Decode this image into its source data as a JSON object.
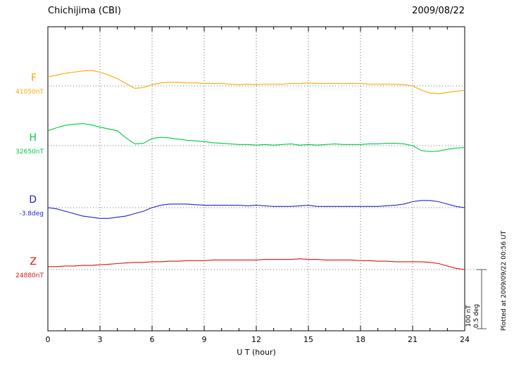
{
  "header": {
    "station": "Chichijima (CBI)",
    "date": "2009/08/22"
  },
  "xaxis": {
    "label": "U T (hour)"
  },
  "scale_bar": {
    "line1": "100 nT",
    "line2": "0.5 deg"
  },
  "footer_note": "Plotted at 2009/09/22 00:56 UT",
  "chart_data": {
    "type": "line",
    "title": "Chichijima (CBI) magnetogram 2009/08/22",
    "xlabel": "U T (hour)",
    "x_range_hours": [
      0,
      24
    ],
    "x_ticks": [
      0,
      3,
      6,
      9,
      12,
      15,
      18,
      21,
      24
    ],
    "step_hours": 0.5,
    "grid": "vertical dotted lines at 3-hour intervals; dotted horizontal baseline per trace",
    "scale": {
      "nT_per_bar": 100,
      "deg_per_bar": 0.5
    },
    "series": [
      {
        "name": "F",
        "base_label": "41050nT",
        "unit": "nT",
        "color": "#FFA500",
        "offsets": [
          15,
          18,
          21,
          23,
          25,
          26,
          23,
          18,
          12,
          4,
          -4,
          -3,
          2,
          5,
          6,
          6,
          5,
          5,
          4,
          4,
          4,
          3,
          2,
          3,
          2,
          3,
          3,
          3,
          4,
          4,
          5,
          4,
          4,
          4,
          4,
          4,
          4,
          3,
          3,
          3,
          3,
          2,
          0,
          -7,
          -12,
          -13,
          -11,
          -9,
          -7
        ]
      },
      {
        "name": "H",
        "base_label": "32650nT",
        "unit": "nT",
        "color": "#00C846",
        "offsets": [
          25,
          30,
          34,
          36,
          37,
          35,
          31,
          28,
          25,
          13,
          3,
          4,
          12,
          14,
          13,
          11,
          9,
          8,
          7,
          5,
          4,
          3,
          2,
          2,
          1,
          2,
          1,
          2,
          3,
          1,
          2,
          1,
          2,
          3,
          2,
          2,
          2,
          3,
          3,
          4,
          4,
          3,
          0,
          -8,
          -10,
          -9,
          -6,
          -4,
          -3
        ]
      },
      {
        "name": "D",
        "base_label": "-3.8deg",
        "unit": "deg",
        "color": "#2222CC",
        "offsets": [
          0,
          -0.01,
          -0.03,
          -0.05,
          -0.07,
          -0.08,
          -0.09,
          -0.09,
          -0.08,
          -0.07,
          -0.05,
          -0.03,
          0,
          0.02,
          0.03,
          0.03,
          0.03,
          0.025,
          0.02,
          0.02,
          0.02,
          0.02,
          0.02,
          0.015,
          0.02,
          0.015,
          0.01,
          0.01,
          0.01,
          0.015,
          0.02,
          0.01,
          0.01,
          0.01,
          0.01,
          0.01,
          0.01,
          0.01,
          0.01,
          0.015,
          0.02,
          0.03,
          0.05,
          0.06,
          0.06,
          0.05,
          0.03,
          0.01,
          0
        ]
      },
      {
        "name": "Z",
        "base_label": "24880nT",
        "unit": "nT",
        "color": "#E01010",
        "offsets": [
          5,
          5,
          6,
          6,
          7,
          7,
          8,
          9,
          10,
          11,
          12,
          12,
          13,
          13,
          14,
          14,
          15,
          15,
          15,
          16,
          16,
          16,
          16,
          16,
          16,
          17,
          17,
          17,
          17,
          18,
          17,
          17,
          16,
          16,
          16,
          16,
          15,
          15,
          14,
          14,
          13,
          13,
          13,
          13,
          12,
          10,
          6,
          2,
          0
        ]
      }
    ]
  }
}
